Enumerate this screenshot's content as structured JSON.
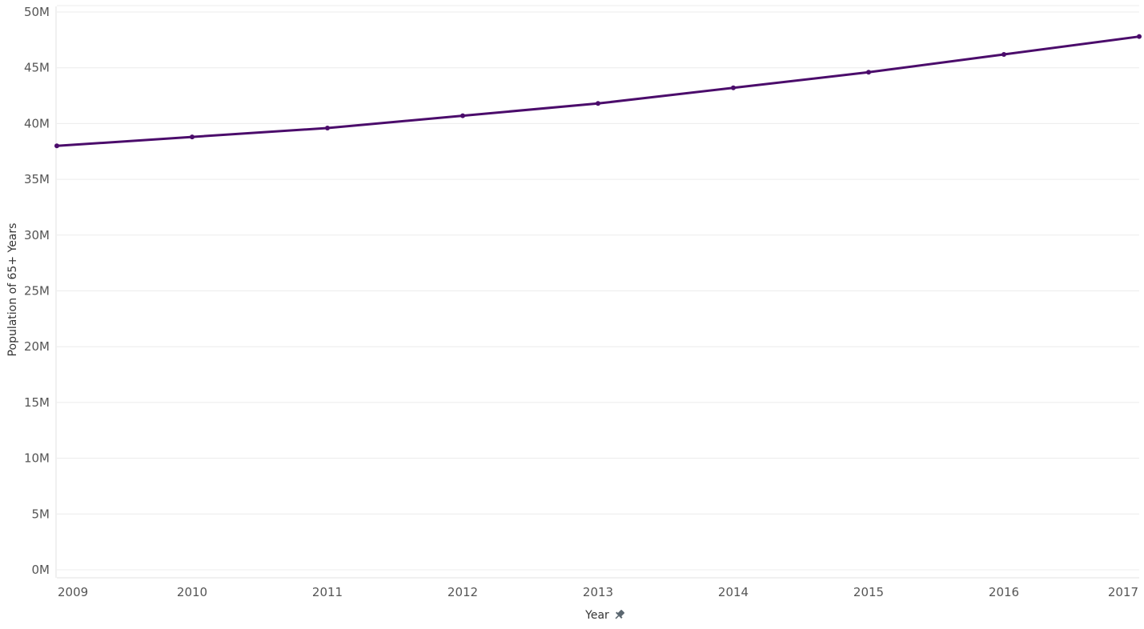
{
  "chart_data": {
    "type": "line",
    "title": "",
    "xlabel": "Year",
    "ylabel": "Population of 65+ Years",
    "x": [
      2009,
      2010,
      2011,
      2012,
      2013,
      2014,
      2015,
      2016,
      2017
    ],
    "series": [
      {
        "values": [
          38.0,
          38.8,
          39.6,
          40.7,
          41.8,
          43.2,
          44.6,
          46.2,
          47.8
        ],
        "color": "#4b0c6b"
      }
    ],
    "y_ticks": [
      "0M",
      "5M",
      "10M",
      "15M",
      "20M",
      "25M",
      "30M",
      "35M",
      "40M",
      "45M",
      "50M"
    ],
    "x_ticks": [
      "2009",
      "2010",
      "2011",
      "2012",
      "2013",
      "2014",
      "2015",
      "2016",
      "2017"
    ],
    "ylim": [
      0,
      50
    ],
    "grid": true,
    "x_axis_icon": "pin-icon",
    "colors": {
      "line": "#4b0c6b",
      "grid": "#ececec",
      "text": "#555555"
    }
  }
}
